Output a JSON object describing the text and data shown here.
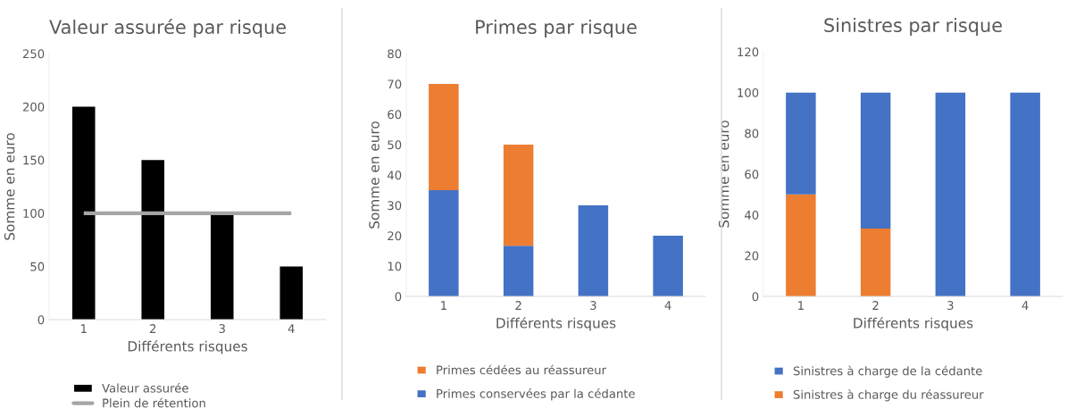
{
  "chart_data": [
    {
      "type": "bar",
      "title": "Valeur assurée par risque",
      "xlabel": "Différents risques",
      "ylabel": "Somme en euro",
      "categories": [
        "1",
        "2",
        "3",
        "4"
      ],
      "series": [
        {
          "name": "Valeur assurée",
          "color": "#000000",
          "values": [
            200,
            150,
            100,
            50
          ]
        },
        {
          "name": "Plein de rétention",
          "type": "line",
          "color": "#a5a5a5",
          "values": [
            100,
            100,
            100,
            100
          ]
        }
      ],
      "ylim": [
        0,
        250
      ],
      "yticks": [
        0,
        50,
        100,
        150,
        200,
        250
      ],
      "grid": false,
      "legend": "bottom"
    },
    {
      "type": "bar",
      "stacked": true,
      "title": "Primes par risque",
      "xlabel": "Différents risques",
      "ylabel": "Somme en euro",
      "categories": [
        "1",
        "2",
        "3",
        "4"
      ],
      "series": [
        {
          "name": "Primes conservées par la cédante",
          "color": "#4472c4",
          "values": [
            35,
            16.7,
            30,
            20
          ]
        },
        {
          "name": "Primes cédées au réassureur",
          "color": "#ed7d31",
          "values": [
            35,
            33.3,
            null,
            null
          ]
        }
      ],
      "ylim": [
        0,
        80
      ],
      "yticks": [
        0,
        10,
        20,
        30,
        40,
        50,
        60,
        70,
        80
      ],
      "grid": false,
      "legend": "bottom"
    },
    {
      "type": "bar",
      "stacked": true,
      "title": "Sinistres par risque",
      "xlabel": "Différents risques",
      "ylabel": "Somme en euro",
      "categories": [
        "1",
        "2",
        "3",
        "4"
      ],
      "series": [
        {
          "name": "Sinistres à charge du réassureur",
          "color": "#ed7d31",
          "values": [
            50,
            33.3,
            null,
            null
          ]
        },
        {
          "name": "Sinistres à charge de la cédante",
          "color": "#4472c4",
          "values": [
            50,
            66.7,
            100,
            100
          ]
        }
      ],
      "ylim": [
        0,
        120
      ],
      "yticks": [
        0,
        20,
        40,
        60,
        80,
        100,
        120
      ],
      "grid": false,
      "legend": "bottom"
    }
  ]
}
